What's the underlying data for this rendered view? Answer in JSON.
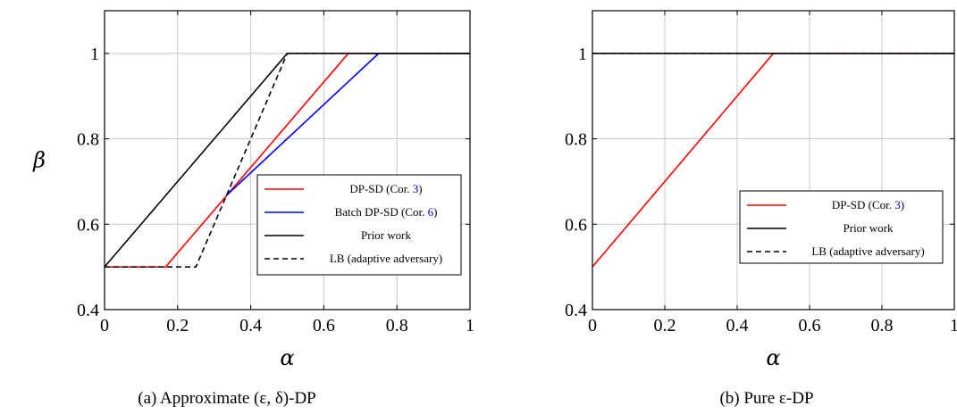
{
  "chart_data": [
    {
      "type": "line",
      "caption": "(a) Approximate (ε, δ)-DP",
      "xlabel": "α",
      "ylabel": "β",
      "xlim": [
        0,
        1
      ],
      "ylim": [
        0.4,
        1.1
      ],
      "xticks": [
        0,
        0.2,
        0.4,
        0.6,
        0.8,
        1
      ],
      "yticks": [
        0.4,
        0.6,
        0.8,
        1
      ],
      "xtick_labels": [
        "0",
        "0.2",
        "0.4",
        "0.6",
        "0.8",
        "1"
      ],
      "ytick_labels": [
        "0.4",
        "0.6",
        "0.8",
        "1"
      ],
      "grid": true,
      "legend_position": "lower-right",
      "series": [
        {
          "name": "DP-SD (Cor. 3)",
          "label_main": "DP-SD (Cor. ",
          "label_ref": "3",
          "label_tail": ")",
          "color": "#ff0000",
          "dash": "solid",
          "x": [
            0,
            0.167,
            0.667,
            1
          ],
          "y": [
            0.5,
            0.5,
            1,
            1
          ]
        },
        {
          "name": "Batch DP-SD (Cor. 6)",
          "label_main": "Batch DP-SD (Cor. ",
          "label_ref": "6",
          "label_tail": ")",
          "color": "#0000ff",
          "dash": "solid",
          "x": [
            0.333,
            0.75,
            1
          ],
          "y": [
            0.667,
            1,
            1
          ]
        },
        {
          "name": "Prior work",
          "label_main": "Prior work",
          "label_ref": "",
          "label_tail": "",
          "color": "#000000",
          "dash": "solid",
          "x": [
            0,
            0.5,
            1
          ],
          "y": [
            0.5,
            1,
            1
          ]
        },
        {
          "name": "LB (adaptive adversary)",
          "label_main": "LB (adaptive adversary)",
          "label_ref": "",
          "label_tail": "",
          "color": "#000000",
          "dash": "dashed",
          "x": [
            0,
            0.25,
            0.5,
            1
          ],
          "y": [
            0.5,
            0.5,
            1,
            1
          ]
        }
      ]
    },
    {
      "type": "line",
      "caption": "(b) Pure ε-DP",
      "xlabel": "α",
      "ylabel": "",
      "xlim": [
        0,
        1
      ],
      "ylim": [
        0.4,
        1.1
      ],
      "xticks": [
        0,
        0.2,
        0.4,
        0.6,
        0.8,
        1
      ],
      "yticks": [
        0.4,
        0.6,
        0.8,
        1
      ],
      "xtick_labels": [
        "0",
        "0.2",
        "0.4",
        "0.6",
        "0.8",
        "1"
      ],
      "ytick_labels": [
        "0.4",
        "0.6",
        "0.8",
        "1"
      ],
      "grid": true,
      "legend_position": "lower-right",
      "series": [
        {
          "name": "DP-SD (Cor. 3)",
          "label_main": "DP-SD (Cor. ",
          "label_ref": "3",
          "label_tail": ")",
          "color": "#ff0000",
          "dash": "solid",
          "x": [
            0,
            0.5,
            1
          ],
          "y": [
            0.5,
            1,
            1
          ]
        },
        {
          "name": "Prior work",
          "label_main": "Prior work",
          "label_ref": "",
          "label_tail": "",
          "color": "#000000",
          "dash": "solid",
          "x": [
            0,
            1
          ],
          "y": [
            1,
            1
          ]
        },
        {
          "name": "LB (adaptive adversary)",
          "label_main": "LB (adaptive adversary)",
          "label_ref": "",
          "label_tail": "",
          "color": "#000000",
          "dash": "dashed",
          "x": [
            0,
            1
          ],
          "y": [
            1,
            1
          ]
        }
      ]
    }
  ]
}
